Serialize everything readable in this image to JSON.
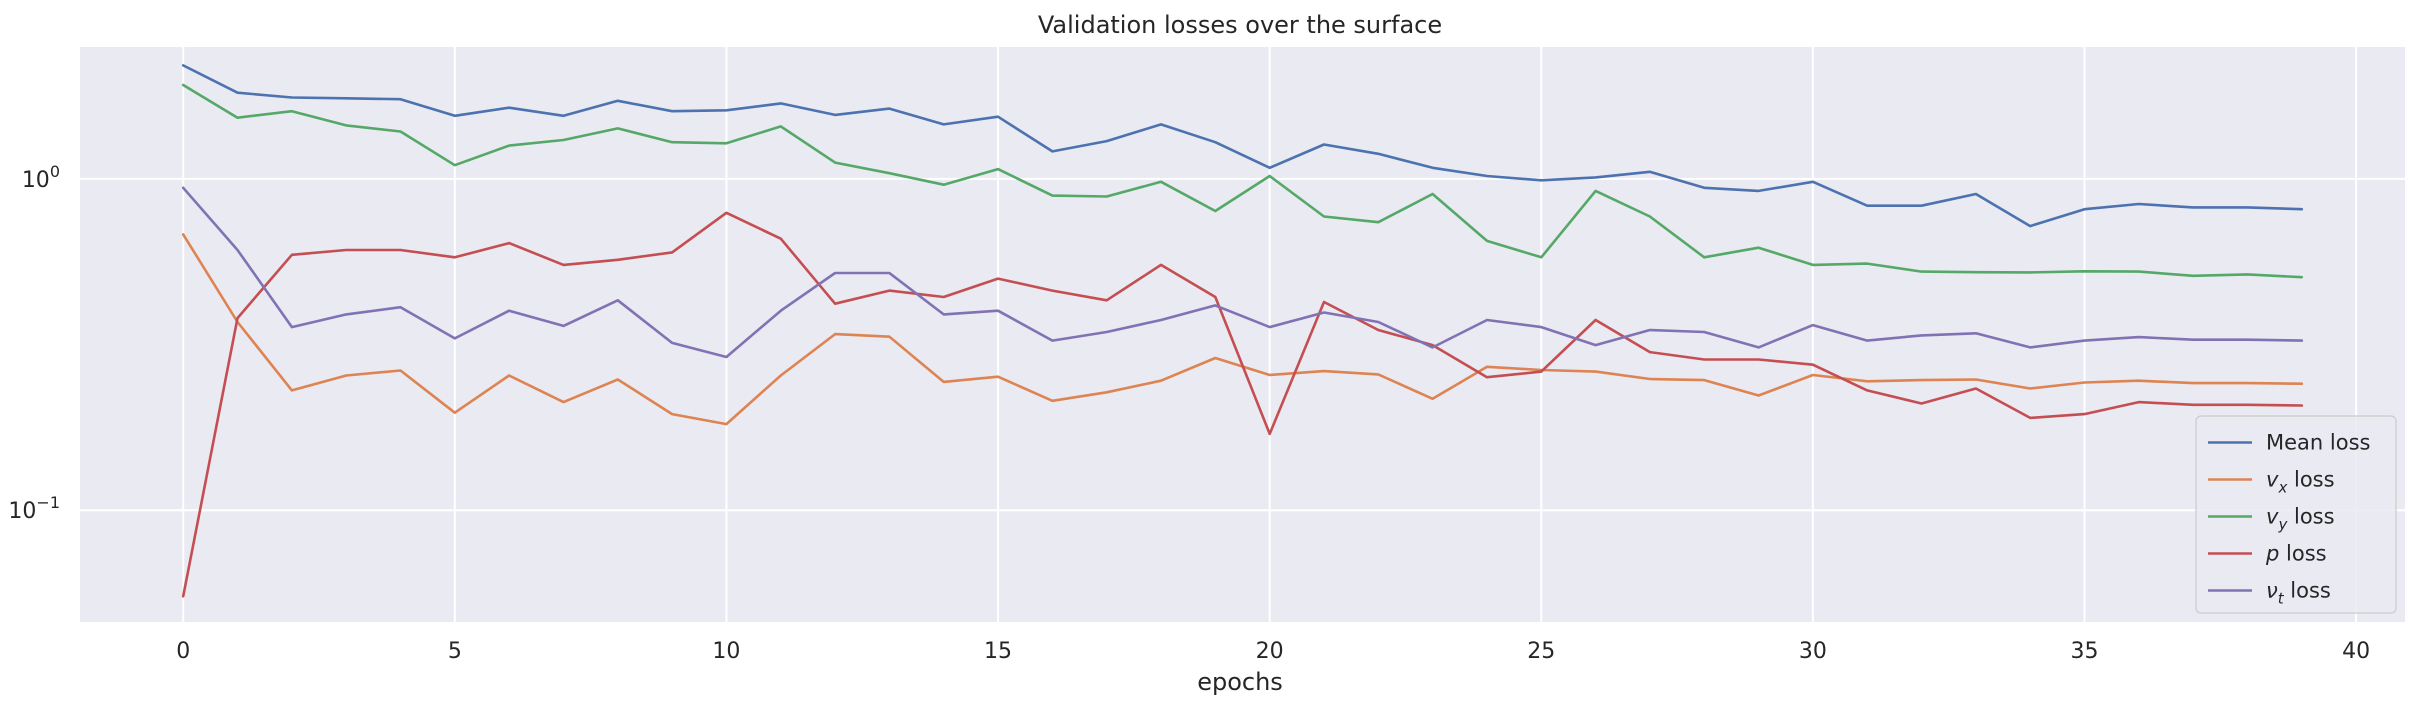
{
  "chart_data": {
    "type": "line",
    "title": "Validation losses over the surface",
    "xlabel": "epochs",
    "ylabel": "",
    "yscale": "log",
    "xlim": [
      -1.9,
      40.9
    ],
    "ylim": [
      0.046,
      2.5
    ],
    "x_ticks": [
      0,
      5,
      10,
      15,
      20,
      25,
      30,
      35,
      40
    ],
    "x_tick_labels": [
      "0",
      "5",
      "10",
      "15",
      "20",
      "25",
      "30",
      "35",
      "40"
    ],
    "y_ticks": [
      0.1,
      1
    ],
    "y_tick_labels": [
      {
        "base": "10",
        "exp": "−1"
      },
      {
        "base": "10",
        "exp": "0"
      }
    ],
    "grid": true,
    "legend_position": "lower-right",
    "x": [
      0,
      1,
      2,
      3,
      4,
      5,
      6,
      7,
      8,
      9,
      10,
      11,
      12,
      13,
      14,
      15,
      16,
      17,
      18,
      19,
      20,
      21,
      22,
      23,
      24,
      25,
      26,
      27,
      28,
      29,
      30,
      31,
      32,
      33,
      34,
      35,
      36,
      37,
      38,
      39
    ],
    "series": [
      {
        "name": "Mean loss",
        "name_parts": {
          "symbol": "",
          "sub": "",
          "rest": "Mean loss"
        },
        "color": "#4c72b0",
        "values": [
          2.2,
          1.82,
          1.76,
          1.75,
          1.74,
          1.55,
          1.64,
          1.55,
          1.72,
          1.6,
          1.61,
          1.69,
          1.56,
          1.63,
          1.46,
          1.54,
          1.21,
          1.3,
          1.46,
          1.29,
          1.08,
          1.27,
          1.19,
          1.08,
          1.02,
          0.99,
          1.01,
          1.05,
          0.94,
          0.92,
          0.98,
          0.83,
          0.83,
          0.9,
          0.72,
          0.81,
          0.84,
          0.82,
          0.82,
          0.81
        ]
      },
      {
        "name": "vx loss",
        "name_parts": {
          "symbol": "v",
          "sub": "x",
          "rest": " loss"
        },
        "color": "#dd8452",
        "values": [
          0.68,
          0.37,
          0.23,
          0.255,
          0.264,
          0.197,
          0.255,
          0.212,
          0.248,
          0.195,
          0.182,
          0.255,
          0.34,
          0.334,
          0.244,
          0.253,
          0.214,
          0.227,
          0.246,
          0.288,
          0.256,
          0.263,
          0.257,
          0.217,
          0.271,
          0.265,
          0.262,
          0.249,
          0.247,
          0.222,
          0.256,
          0.245,
          0.247,
          0.248,
          0.233,
          0.243,
          0.246,
          0.242,
          0.242,
          0.241
        ]
      },
      {
        "name": "vy loss",
        "name_parts": {
          "symbol": "v",
          "sub": "y",
          "rest": " loss"
        },
        "color": "#55a868",
        "values": [
          1.92,
          1.53,
          1.6,
          1.45,
          1.39,
          1.1,
          1.26,
          1.31,
          1.42,
          1.29,
          1.28,
          1.44,
          1.12,
          1.04,
          0.96,
          1.07,
          0.89,
          0.885,
          0.98,
          0.8,
          1.02,
          0.77,
          0.74,
          0.9,
          0.65,
          0.58,
          0.92,
          0.77,
          0.58,
          0.62,
          0.55,
          0.555,
          0.525,
          0.523,
          0.522,
          0.526,
          0.525,
          0.51,
          0.515,
          0.505
        ]
      },
      {
        "name": "p loss",
        "name_parts": {
          "symbol": "p",
          "sub": "",
          "rest": " loss"
        },
        "color": "#c44e52",
        "values": [
          0.055,
          0.38,
          0.59,
          0.61,
          0.61,
          0.58,
          0.64,
          0.55,
          0.57,
          0.6,
          0.79,
          0.66,
          0.42,
          0.46,
          0.44,
          0.5,
          0.46,
          0.43,
          0.55,
          0.44,
          0.17,
          0.425,
          0.35,
          0.315,
          0.252,
          0.262,
          0.375,
          0.3,
          0.285,
          0.285,
          0.275,
          0.23,
          0.21,
          0.233,
          0.19,
          0.195,
          0.212,
          0.208,
          0.208,
          0.207
        ]
      },
      {
        "name": "νt loss",
        "name_parts": {
          "symbol": "ν",
          "sub": "t",
          "rest": " loss"
        },
        "color": "#8172b3",
        "values": [
          0.94,
          0.61,
          0.357,
          0.39,
          0.41,
          0.33,
          0.4,
          0.36,
          0.43,
          0.32,
          0.29,
          0.4,
          0.52,
          0.52,
          0.39,
          0.4,
          0.325,
          0.345,
          0.375,
          0.415,
          0.357,
          0.395,
          0.37,
          0.31,
          0.375,
          0.357,
          0.315,
          0.35,
          0.345,
          0.31,
          0.362,
          0.325,
          0.337,
          0.342,
          0.31,
          0.325,
          0.333,
          0.327,
          0.327,
          0.325
        ]
      }
    ]
  }
}
